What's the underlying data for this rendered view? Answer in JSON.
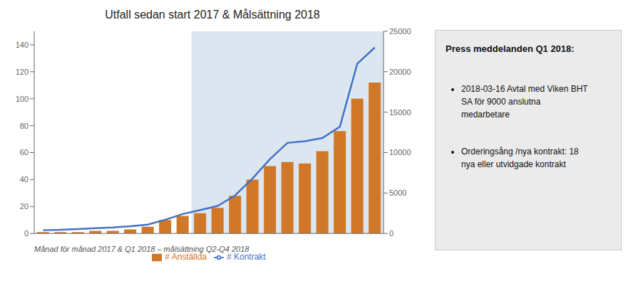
{
  "chart_data": {
    "type": "bar",
    "title": "Utfall sedan start 2017 & Målsättning 2018",
    "x_label": "Månad för månad  2017 & Q1 2018 – målsättning Q2-Q4 2018",
    "categories": [
      null,
      null,
      null,
      null,
      null,
      null,
      null,
      null,
      null,
      null,
      null,
      null,
      null,
      null,
      null,
      null,
      null,
      null,
      null,
      null
    ],
    "series": [
      {
        "name": "# Anställda",
        "type": "bar",
        "color": "#d07828",
        "values": [
          1,
          1,
          1,
          2,
          2,
          3,
          5,
          10,
          13,
          15,
          19,
          28,
          40,
          50,
          53,
          52,
          61,
          76,
          100,
          112
        ]
      },
      {
        "name": "# Kontrakt",
        "type": "line",
        "color": "#4472c4",
        "axis": "y2",
        "values": [
          400,
          450,
          550,
          650,
          750,
          900,
          1100,
          1700,
          2400,
          2900,
          3400,
          4700,
          6800,
          9200,
          11200,
          11400,
          11800,
          13200,
          21000,
          23000
        ]
      }
    ],
    "ylim": [
      0,
      150
    ],
    "yticks": [
      0,
      20,
      40,
      60,
      80,
      100,
      120,
      140
    ],
    "y2lim": [
      0,
      25000
    ],
    "y2ticks": [
      0,
      5000,
      10000,
      15000,
      20000,
      25000
    ],
    "grid": false,
    "legend": "bottom",
    "tick_labels": "y",
    "shaded_region": {
      "start_index": 9,
      "color": "#dce6f1"
    },
    "text_box": {
      "title": "Press meddelanden Q1 2018:",
      "bullets": [
        [
          "2018-03-16 Avtal med Viken BHT",
          "SA för 9000 anslutna",
          "medarbetare"
        ],
        [
          "Orderingsång /nya kontrakt: 18",
          "nya eller utvidgade kontrakt"
        ]
      ],
      "color": "#ebebeb",
      "border_color": "#cccccc"
    }
  }
}
